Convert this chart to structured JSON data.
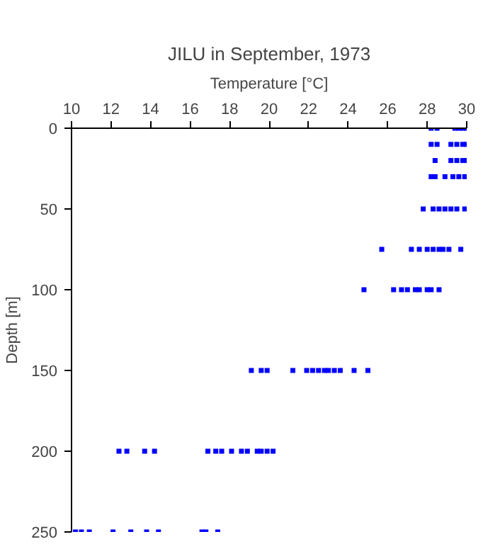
{
  "chart_data": {
    "type": "scatter",
    "title": "JILU in September, 1973",
    "xlabel": "Temperature [°C]",
    "ylabel": "Depth [m]",
    "xlim": [
      10,
      30
    ],
    "xticks": [
      10,
      12,
      14,
      16,
      18,
      20,
      22,
      24,
      26,
      28,
      30
    ],
    "ylim": [
      250,
      0
    ],
    "yticks": [
      0,
      50,
      100,
      150,
      200,
      250
    ],
    "grid": false,
    "marker": "square",
    "series": [
      {
        "color": "#0000ff",
        "x": [
          28.2,
          28.5,
          29.4,
          29.6,
          29.8,
          30.0,
          28.2,
          28.5,
          29.2,
          29.5,
          29.8,
          30.0,
          28.4,
          29.2,
          29.5,
          29.8,
          30.0,
          28.2,
          28.4,
          28.9,
          29.3,
          29.6,
          29.9,
          27.8,
          28.3,
          28.6,
          28.9,
          29.2,
          29.5,
          29.9,
          25.7,
          27.2,
          27.6,
          28.0,
          28.3,
          28.6,
          28.8,
          29.1,
          29.7,
          24.8,
          26.3,
          26.7,
          27.0,
          27.4,
          27.6,
          28.0,
          28.2,
          28.6,
          19.1,
          19.6,
          19.9,
          21.2,
          21.9,
          22.2,
          22.5,
          22.8,
          23.0,
          23.3,
          23.6,
          24.3,
          25.0,
          12.4,
          12.8,
          13.7,
          14.2,
          16.9,
          17.3,
          17.6,
          18.1,
          18.6,
          18.9,
          19.4,
          19.6,
          19.9,
          20.2,
          10.2,
          10.5,
          10.9,
          12.1,
          13.0,
          13.8,
          14.4,
          16.6,
          16.8,
          17.4
        ],
        "values": [
          0,
          0,
          0,
          0,
          0,
          0,
          10,
          10,
          10,
          10,
          10,
          10,
          20,
          20,
          20,
          20,
          20,
          30,
          30,
          30,
          30,
          30,
          30,
          50,
          50,
          50,
          50,
          50,
          50,
          50,
          75,
          75,
          75,
          75,
          75,
          75,
          75,
          75,
          75,
          100,
          100,
          100,
          100,
          100,
          100,
          100,
          100,
          100,
          150,
          150,
          150,
          150,
          150,
          150,
          150,
          150,
          150,
          150,
          150,
          150,
          150,
          200,
          200,
          200,
          200,
          200,
          200,
          200,
          200,
          200,
          200,
          200,
          200,
          200,
          200,
          250,
          250,
          250,
          250,
          250,
          250,
          250,
          250,
          250,
          250
        ]
      }
    ]
  }
}
